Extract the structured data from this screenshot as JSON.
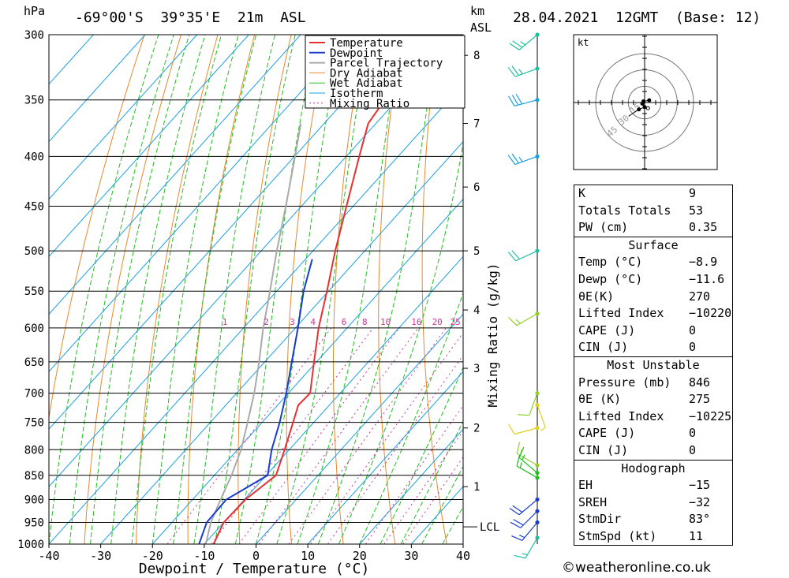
{
  "header": {
    "pressure_unit": "hPa",
    "location": "-69°00'S  39°35'E  21m  ASL",
    "height_unit_line1": "km",
    "height_unit_line2": "ASL",
    "date": "28.04.2021  12GMT  (Base: 12)"
  },
  "chart_data": {
    "type": "skew-t",
    "xlabel": "Dewpoint / Temperature (°C)",
    "right_axis_label": "Mixing Ratio (g/kg)",
    "x_ticks": [
      "-40",
      "-30",
      "-20",
      "-10",
      "0",
      "10",
      "20",
      "30",
      "40"
    ],
    "x_tick_values": [
      -40,
      -30,
      -20,
      -10,
      0,
      10,
      20,
      30,
      40
    ],
    "pressure_levels": [
      300,
      350,
      400,
      450,
      500,
      550,
      600,
      650,
      700,
      750,
      800,
      850,
      900,
      950,
      1000
    ],
    "pressure_labels": [
      "300",
      "350",
      "400",
      "450",
      "500",
      "550",
      "600",
      "650",
      "700",
      "750",
      "800",
      "850",
      "900",
      "950",
      "1000"
    ],
    "km_ticks": [
      {
        "km": "1",
        "p": 873
      },
      {
        "km": "2",
        "p": 760
      },
      {
        "km": "3",
        "p": 660
      },
      {
        "km": "4",
        "p": 575
      },
      {
        "km": "5",
        "p": 500
      },
      {
        "km": "6",
        "p": 430
      },
      {
        "km": "7",
        "p": 370
      },
      {
        "km": "8",
        "p": 315
      }
    ],
    "lcl": {
      "label": "LCL",
      "p": 960
    },
    "mixing_ratio_labels": [
      "1",
      "2",
      "3",
      "4",
      "6",
      "8",
      "10",
      "16",
      "20",
      "25"
    ],
    "mixing_ratio_label_x": [
      -6,
      2,
      7,
      11,
      17,
      21,
      25,
      31,
      35,
      38.5
    ],
    "legend": [
      "Temperature",
      "Dewpoint",
      "Parcel Trajectory",
      "Dry Adiabat",
      "Wet Adiabat",
      "Isotherm",
      "Mixing Ratio"
    ],
    "colors": {
      "temperature": "#e83030",
      "dewpoint": "#1a3ccc",
      "parcel": "#aaaaaa",
      "dry": "#e8892a",
      "wet": "#1fbf1f",
      "iso": "#1aa0e0",
      "mix": "#cc3399"
    },
    "temperature": [
      {
        "p": 1000,
        "t": -8.2
      },
      {
        "p": 950,
        "t": -10.0
      },
      {
        "p": 900,
        "t": -9.8
      },
      {
        "p": 850,
        "t": -8.1
      },
      {
        "p": 800,
        "t": -10.9
      },
      {
        "p": 750,
        "t": -14.0
      },
      {
        "p": 720,
        "t": -16.0
      },
      {
        "p": 700,
        "t": -15.8
      },
      {
        "p": 650,
        "t": -20.5
      },
      {
        "p": 600,
        "t": -25.5
      },
      {
        "p": 550,
        "t": -30.3
      },
      {
        "p": 500,
        "t": -35.7
      },
      {
        "p": 450,
        "t": -41.3
      },
      {
        "p": 400,
        "t": -47.5
      },
      {
        "p": 370,
        "t": -51.5
      },
      {
        "p": 350,
        "t": -52.4
      },
      {
        "p": 320,
        "t": -54.4
      },
      {
        "p": 300,
        "t": -56.2
      }
    ],
    "dewpoint": [
      {
        "p": 1000,
        "t": -11.0
      },
      {
        "p": 950,
        "t": -13.3
      },
      {
        "p": 900,
        "t": -13.5
      },
      {
        "p": 850,
        "t": -9.7
      },
      {
        "p": 800,
        "t": -13.4
      },
      {
        "p": 750,
        "t": -16.6
      },
      {
        "p": 700,
        "t": -20.4
      },
      {
        "p": 650,
        "t": -24.8
      },
      {
        "p": 600,
        "t": -29.5
      },
      {
        "p": 550,
        "t": -34.8
      },
      {
        "p": 510,
        "t": -38.7
      }
    ],
    "parcel": [
      {
        "p": 1000,
        "t": -9.7
      },
      {
        "p": 950,
        "t": -12.5
      },
      {
        "p": 900,
        "t": -14.6
      },
      {
        "p": 850,
        "t": -16.7
      },
      {
        "p": 800,
        "t": -19.3
      },
      {
        "p": 750,
        "t": -22.8
      },
      {
        "p": 700,
        "t": -26.6
      },
      {
        "p": 650,
        "t": -31.1
      },
      {
        "p": 600,
        "t": -36.2
      },
      {
        "p": 550,
        "t": -41.3
      },
      {
        "p": 500,
        "t": -47.0
      },
      {
        "p": 450,
        "t": -53.0
      },
      {
        "p": 400,
        "t": -59.9
      },
      {
        "p": 370,
        "t": -64.5
      }
    ],
    "winds": [
      {
        "p": 300,
        "dir": 230,
        "spd": 25,
        "color": "#1fbf9f"
      },
      {
        "p": 325,
        "dir": 250,
        "spd": 25,
        "color": "#1fbf9f"
      },
      {
        "p": 350,
        "dir": 255,
        "spd": 30,
        "color": "#1aa0e0"
      },
      {
        "p": 400,
        "dir": 250,
        "spd": 25,
        "color": "#1aa0e0"
      },
      {
        "p": 500,
        "dir": 245,
        "spd": 20,
        "color": "#1fbf9f"
      },
      {
        "p": 580,
        "dir": 240,
        "spd": 15,
        "color": "#8fd12a"
      },
      {
        "p": 700,
        "dir": 200,
        "spd": 10,
        "color": "#8fd12a"
      },
      {
        "p": 720,
        "dir": 160,
        "spd": 5,
        "color": "#e0d020"
      },
      {
        "p": 760,
        "dir": 255,
        "spd": 10,
        "color": "#e0d020"
      },
      {
        "p": 830,
        "dir": 300,
        "spd": 15,
        "color": "#8fd12a"
      },
      {
        "p": 845,
        "dir": 310,
        "spd": 15,
        "color": "#1fbf1f"
      },
      {
        "p": 855,
        "dir": 300,
        "spd": 15,
        "color": "#1fbf1f"
      },
      {
        "p": 900,
        "dir": 230,
        "spd": 20,
        "color": "#1a3ccc"
      },
      {
        "p": 925,
        "dir": 225,
        "spd": 20,
        "color": "#1a3ccc"
      },
      {
        "p": 950,
        "dir": 220,
        "spd": 15,
        "color": "#1a3ccc"
      },
      {
        "p": 985,
        "dir": 210,
        "spd": 15,
        "color": "#1fbf9f"
      }
    ],
    "hodograph": {
      "unit": "kt",
      "ring_labels": [
        "15",
        "30",
        "45"
      ],
      "points": [
        [
          4,
          2
        ],
        [
          -1,
          1
        ],
        [
          -2,
          -1
        ],
        [
          0,
          -4
        ],
        [
          -5,
          -6
        ],
        [
          -11,
          -10
        ],
        [
          -14,
          -12
        ]
      ],
      "storm": [
        3,
        -5
      ]
    }
  },
  "indices": [
    {
      "label": "K",
      "value": "9"
    },
    {
      "label": "Totals Totals",
      "value": "53"
    },
    {
      "label": "PW (cm)",
      "value": "0.35"
    }
  ],
  "surface": {
    "title": "Surface",
    "rows": [
      {
        "label": "Temp (°C)",
        "value": "−8.9"
      },
      {
        "label": "Dewp (°C)",
        "value": "−11.6"
      },
      {
        "label": "θE(K)",
        "value": "270"
      },
      {
        "label": "Lifted Index",
        "value": "−10220"
      },
      {
        "label": "CAPE (J)",
        "value": "0"
      },
      {
        "label": "CIN (J)",
        "value": "0"
      }
    ]
  },
  "most_unstable": {
    "title": "Most Unstable",
    "rows": [
      {
        "label": "Pressure (mb)",
        "value": "846"
      },
      {
        "label": "θE (K)",
        "value": "275"
      },
      {
        "label": "Lifted Index",
        "value": "−10225"
      },
      {
        "label": "CAPE (J)",
        "value": "0"
      },
      {
        "label": "CIN (J)",
        "value": "0"
      }
    ]
  },
  "hodograph_stats": {
    "title": "Hodograph",
    "rows": [
      {
        "label": "EH",
        "value": "−15"
      },
      {
        "label": "SREH",
        "value": "−32"
      },
      {
        "label": "StmDir",
        "value": "83°"
      },
      {
        "label": "StmSpd (kt)",
        "value": "11"
      }
    ]
  },
  "copyright": "©weatheronline.co.uk"
}
